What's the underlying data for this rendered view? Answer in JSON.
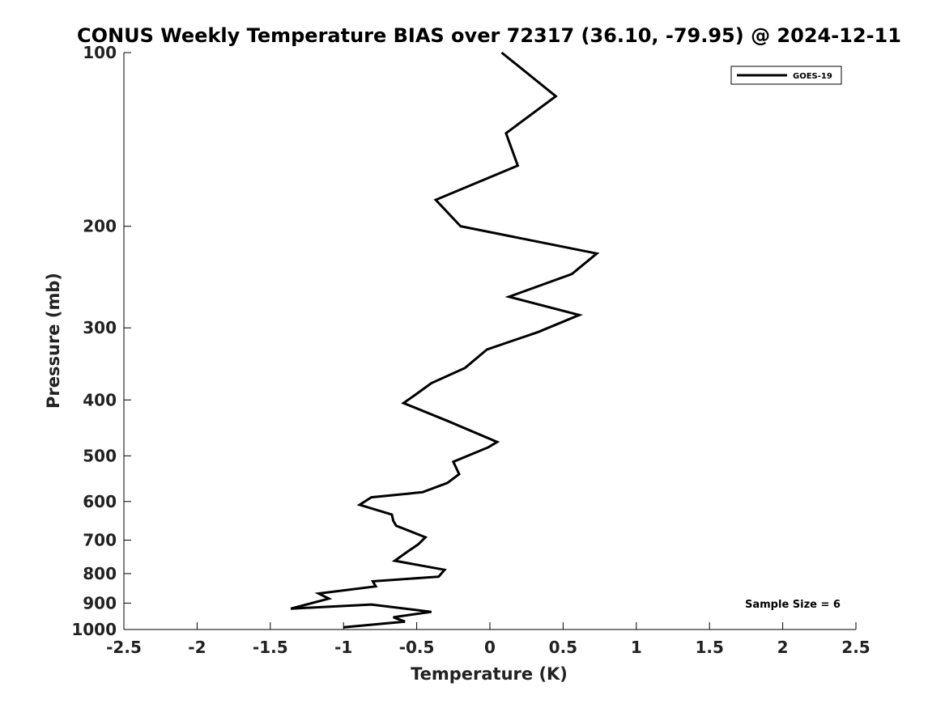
{
  "chart_data": {
    "type": "line",
    "title": "CONUS Weekly Temperature BIAS over 72317 (36.10, -79.95) @ 2024-12-11",
    "xlabel": "Temperature (K)",
    "ylabel": "Pressure (mb)",
    "xlim": [
      -2.5,
      2.5
    ],
    "ylim": [
      1000,
      100
    ],
    "yscale": "log",
    "x_ticks": [
      -2.5,
      -2,
      -1.5,
      -1,
      -0.5,
      0,
      0.5,
      1,
      1.5,
      2,
      2.5
    ],
    "x_tick_labels": [
      "-2.5",
      "-2",
      "-1.5",
      "-1",
      "-0.5",
      "0",
      "0.5",
      "1",
      "1.5",
      "2",
      "2.5"
    ],
    "y_ticks": [
      100,
      200,
      300,
      400,
      500,
      600,
      700,
      800,
      900,
      1000
    ],
    "y_tick_labels": [
      "100",
      "200",
      "300",
      "400",
      "500",
      "600",
      "700",
      "800",
      "900",
      "1000"
    ],
    "grid": false,
    "legend_position": "top-right",
    "annotation": "Sample Size = 6",
    "series": [
      {
        "name": "GOES-19",
        "color": "#000000",
        "x": [
          0.08,
          0.45,
          0.11,
          0.19,
          -0.37,
          -0.2,
          0.73,
          0.56,
          0.13,
          0.61,
          0.33,
          -0.02,
          -0.17,
          -0.4,
          -0.51,
          -0.59,
          -0.29,
          0.05,
          -0.01,
          -0.25,
          -0.21,
          -0.29,
          -0.46,
          -0.81,
          -0.89,
          -0.67,
          -0.66,
          -0.64,
          -0.44,
          -0.49,
          -0.56,
          -0.65,
          -0.31,
          -0.35,
          -0.8,
          -0.78,
          -1.17,
          -1.1,
          -1.36,
          -0.81,
          -0.4,
          -0.66,
          -0.58,
          -1.0
        ],
        "y": [
          100,
          119,
          138,
          157,
          180,
          200,
          223,
          242,
          265,
          285,
          305,
          327,
          352,
          374,
          392,
          405,
          435,
          473,
          483,
          512,
          538,
          557,
          578,
          590,
          608,
          632,
          648,
          661,
          692,
          712,
          732,
          760,
          788,
          810,
          825,
          842,
          866,
          884,
          920,
          905,
          932,
          952,
          969,
          991
        ]
      }
    ]
  }
}
